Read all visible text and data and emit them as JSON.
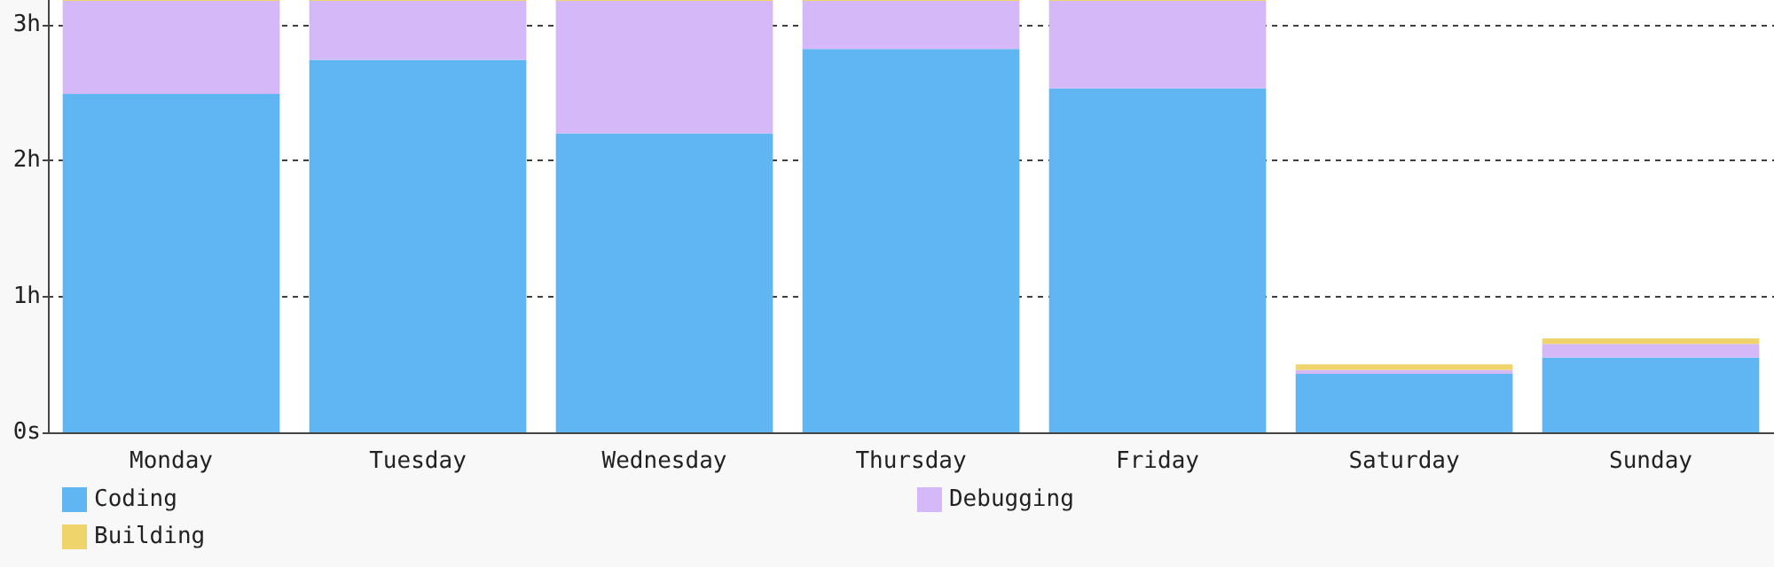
{
  "chart_data": {
    "type": "bar",
    "stacked": true,
    "categories": [
      "Monday",
      "Tuesday",
      "Wednesday",
      "Thursday",
      "Friday",
      "Saturday",
      "Sunday"
    ],
    "series": [
      {
        "name": "Coding",
        "color": "#60b5f3",
        "values": [
          2.49,
          2.74,
          2.2,
          2.82,
          2.53,
          0.43,
          0.55
        ]
      },
      {
        "name": "Debugging",
        "color": "#d4b8f8",
        "values": [
          0.69,
          0.44,
          0.98,
          0.36,
          0.65,
          0.03,
          0.1
        ]
      },
      {
        "name": "Building",
        "color": "#efd46c",
        "values": [
          0,
          0,
          0,
          0,
          0,
          0.04,
          0.04
        ]
      }
    ],
    "ylim": [
      0,
      3.18
    ],
    "yticks": [
      {
        "value": 0,
        "label": "0s"
      },
      {
        "value": 1,
        "label": "1h"
      },
      {
        "value": 2,
        "label": "2h"
      },
      {
        "value": 3,
        "label": "3h"
      }
    ],
    "grid": "y",
    "legend": "bottom left"
  }
}
